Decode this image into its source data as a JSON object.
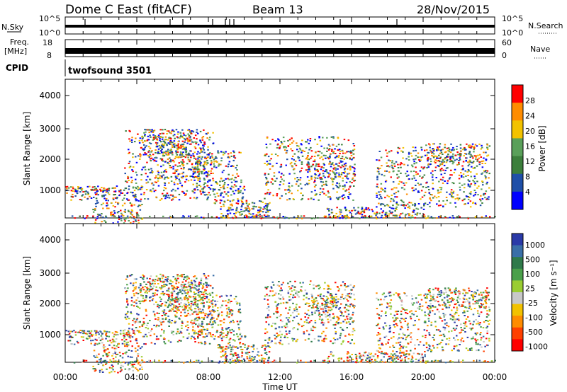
{
  "header": {
    "station": "Dome C East (fitACF)",
    "beam": "Beam 13",
    "date": "28/Nov/2015"
  },
  "status_panels": {
    "nsky": {
      "label": "N.Sky",
      "ticks": [
        "10^5",
        "10^0"
      ]
    },
    "nsearch": {
      "label": "N.Search",
      "ticks": [
        "10^5",
        "10^0"
      ]
    },
    "freq": {
      "label_line1": "Freq.",
      "label_line2": "[MHz]",
      "ticks": [
        "18",
        "8"
      ]
    },
    "nave": {
      "label": "Nave",
      "ticks": [
        "60",
        "0"
      ]
    },
    "cpid": {
      "label": "CPID",
      "program": "twofsound 3501"
    }
  },
  "chart_data": [
    {
      "type": "heatmap",
      "name": "power",
      "ylabel": "Slant Range [km]",
      "yticks": [
        "4000",
        "3000",
        "2000",
        "1000"
      ],
      "colorbar_label": "Power [dB]",
      "colorbar_ticks": [
        "28",
        "24",
        "20",
        "16",
        "12",
        "8",
        "4"
      ],
      "colors": [
        "#0000ff",
        "#1f4fa8",
        "#3c7f3c",
        "#5aa05a",
        "#f2c200",
        "#ff8c00",
        "#ff0000"
      ]
    },
    {
      "type": "heatmap",
      "name": "velocity",
      "ylabel": "Slant Range [km]",
      "yticks": [
        "4000",
        "3000",
        "2000",
        "1000"
      ],
      "colorbar_label": "Velocity [m s⁻¹]",
      "colorbar_ticks": [
        "1000",
        "500",
        "100",
        "25",
        "-25",
        "-100",
        "-500",
        "-1000"
      ],
      "colors": [
        "#2a3aa8",
        "#3a6fa8",
        "#2f7a4a",
        "#4aa04a",
        "#9acd32",
        "#c8c8c8",
        "#f2c200",
        "#ff8c00",
        "#ff4000",
        "#ff0000"
      ]
    }
  ],
  "time_axis": {
    "label": "Time UT",
    "ticks": [
      "00:00",
      "04:00",
      "08:00",
      "12:00",
      "16:00",
      "20:00",
      "00:00"
    ]
  }
}
